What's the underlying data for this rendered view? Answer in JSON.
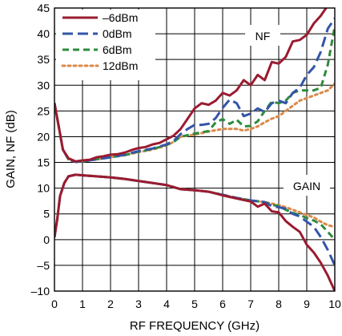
{
  "chart_data": {
    "type": "line",
    "xlabel": "RF FREQUENCY (GHz)",
    "ylabel": "GAIN, NF (dB)",
    "xlim": [
      0,
      10
    ],
    "ylim": [
      -10,
      45
    ],
    "xticks": [
      "0",
      "1",
      "2",
      "3",
      "4",
      "5",
      "6",
      "7",
      "8",
      "9",
      "10"
    ],
    "yticks": [
      "–10",
      "–5",
      "0",
      "5",
      "10",
      "15",
      "20",
      "25",
      "30",
      "35",
      "40",
      "45"
    ],
    "grid": true,
    "legend_position": "top-left",
    "annotations": [
      "NF",
      "GAIN"
    ],
    "series": [
      {
        "name": "–6dBm",
        "color": "#9b1b30",
        "dash": "solid",
        "nf": [
          [
            0,
            26.5
          ],
          [
            0.15,
            22
          ],
          [
            0.3,
            17.5
          ],
          [
            0.5,
            15.8
          ],
          [
            0.75,
            15.2
          ],
          [
            1,
            15.4
          ],
          [
            1.25,
            15.5
          ],
          [
            1.5,
            16
          ],
          [
            1.75,
            16.2
          ],
          [
            2,
            16.5
          ],
          [
            2.25,
            16.6
          ],
          [
            2.5,
            16.9
          ],
          [
            2.75,
            17.4
          ],
          [
            3,
            17.8
          ],
          [
            3.25,
            18
          ],
          [
            3.5,
            18.5
          ],
          [
            3.75,
            18.8
          ],
          [
            4,
            19.5
          ],
          [
            4.25,
            20.2
          ],
          [
            4.5,
            21.5
          ],
          [
            4.75,
            23.5
          ],
          [
            5,
            25.5
          ],
          [
            5.25,
            26.5
          ],
          [
            5.5,
            26.2
          ],
          [
            5.75,
            27
          ],
          [
            6,
            28.5
          ],
          [
            6.25,
            28
          ],
          [
            6.5,
            29
          ],
          [
            6.75,
            31
          ],
          [
            7,
            30
          ],
          [
            7.25,
            32
          ],
          [
            7.5,
            31
          ],
          [
            7.75,
            34.5
          ],
          [
            8,
            34.2
          ],
          [
            8.25,
            35.5
          ],
          [
            8.5,
            38.5
          ],
          [
            8.75,
            38.8
          ],
          [
            9,
            39.8
          ],
          [
            9.25,
            42
          ],
          [
            9.5,
            43.5
          ],
          [
            9.75,
            45.5
          ],
          [
            10,
            47.5
          ]
        ],
        "gain": [
          [
            0,
            0.5
          ],
          [
            0.1,
            4
          ],
          [
            0.2,
            8.5
          ],
          [
            0.35,
            11
          ],
          [
            0.5,
            12.3
          ],
          [
            0.75,
            12.6
          ],
          [
            1,
            12.5
          ],
          [
            1.5,
            12.3
          ],
          [
            2,
            12.1
          ],
          [
            2.5,
            11.8
          ],
          [
            3,
            11.4
          ],
          [
            3.5,
            11
          ],
          [
            4,
            10.6
          ],
          [
            4.5,
            9.8
          ],
          [
            5,
            9.6
          ],
          [
            5.5,
            9.3
          ],
          [
            6,
            8.6
          ],
          [
            6.5,
            8
          ],
          [
            7,
            7.4
          ],
          [
            7.25,
            6.4
          ],
          [
            7.5,
            7
          ],
          [
            7.75,
            5.5
          ],
          [
            8,
            5.3
          ],
          [
            8.25,
            3.6
          ],
          [
            8.5,
            2.5
          ],
          [
            8.75,
            1.5
          ],
          [
            9,
            -1
          ],
          [
            9.25,
            -2.5
          ],
          [
            9.5,
            -4.5
          ],
          [
            9.75,
            -7
          ],
          [
            10,
            -10
          ]
        ]
      },
      {
        "name": "0dBm",
        "color": "#3355a8",
        "dash": "long-dash",
        "nf": [
          [
            0,
            26.5
          ],
          [
            0.15,
            22
          ],
          [
            0.3,
            17.5
          ],
          [
            0.5,
            15.6
          ],
          [
            0.75,
            15.1
          ],
          [
            1,
            15.2
          ],
          [
            1.5,
            15.6
          ],
          [
            2,
            16
          ],
          [
            2.5,
            16.5
          ],
          [
            3,
            17.2
          ],
          [
            3.5,
            17.7
          ],
          [
            4,
            18.5
          ],
          [
            4.25,
            19.2
          ],
          [
            4.5,
            20.5
          ],
          [
            4.75,
            21.5
          ],
          [
            5,
            22.3
          ],
          [
            5.25,
            22.3
          ],
          [
            5.5,
            22.5
          ],
          [
            5.75,
            23.6
          ],
          [
            6,
            25.6
          ],
          [
            6.25,
            27.2
          ],
          [
            6.5,
            26.5
          ],
          [
            6.75,
            24
          ],
          [
            7,
            24.5
          ],
          [
            7.25,
            25.5
          ],
          [
            7.5,
            24.8
          ],
          [
            7.75,
            26.5
          ],
          [
            8,
            27
          ],
          [
            8.25,
            26.5
          ],
          [
            8.5,
            28.5
          ],
          [
            8.75,
            29.5
          ],
          [
            9,
            32
          ],
          [
            9.25,
            33.5
          ],
          [
            9.5,
            36.5
          ],
          [
            9.75,
            41
          ],
          [
            10,
            43
          ]
        ],
        "gain": [
          [
            0,
            0.5
          ],
          [
            0.1,
            4
          ],
          [
            0.2,
            8.5
          ],
          [
            0.35,
            11
          ],
          [
            0.5,
            12.3
          ],
          [
            0.75,
            12.6
          ],
          [
            1,
            12.5
          ],
          [
            1.5,
            12.3
          ],
          [
            2,
            12.1
          ],
          [
            2.5,
            11.8
          ],
          [
            3,
            11.4
          ],
          [
            3.5,
            11
          ],
          [
            4,
            10.6
          ],
          [
            4.5,
            9.8
          ],
          [
            5,
            9.6
          ],
          [
            5.5,
            9.3
          ],
          [
            6,
            8.7
          ],
          [
            6.5,
            8.1
          ],
          [
            7,
            7.6
          ],
          [
            7.5,
            7.3
          ],
          [
            7.75,
            6.5
          ],
          [
            8,
            6.3
          ],
          [
            8.25,
            6
          ],
          [
            8.5,
            5
          ],
          [
            8.75,
            4.5
          ],
          [
            9,
            3.5
          ],
          [
            9.25,
            2.5
          ],
          [
            9.5,
            0.5
          ],
          [
            9.75,
            -2
          ],
          [
            10,
            -5
          ]
        ]
      },
      {
        "name": "6dBm",
        "color": "#2e8b3e",
        "dash": "dash",
        "nf": [
          [
            0,
            26.5
          ],
          [
            0.15,
            22
          ],
          [
            0.3,
            17.5
          ],
          [
            0.5,
            15.6
          ],
          [
            0.75,
            15.1
          ],
          [
            1,
            15.2
          ],
          [
            1.5,
            15.6
          ],
          [
            2,
            16
          ],
          [
            2.5,
            16.4
          ],
          [
            3,
            17.1
          ],
          [
            3.5,
            17.6
          ],
          [
            4,
            18.4
          ],
          [
            4.25,
            19
          ],
          [
            4.5,
            20
          ],
          [
            5,
            20.6
          ],
          [
            5.5,
            21.1
          ],
          [
            5.75,
            22.8
          ],
          [
            6,
            23.4
          ],
          [
            6.25,
            22.5
          ],
          [
            6.5,
            23.3
          ],
          [
            6.75,
            22
          ],
          [
            7,
            22.1
          ],
          [
            7.25,
            23
          ],
          [
            7.5,
            25
          ],
          [
            7.75,
            26.8
          ],
          [
            8,
            26.5
          ],
          [
            8.25,
            27
          ],
          [
            8.5,
            28.5
          ],
          [
            8.75,
            29
          ],
          [
            9,
            29
          ],
          [
            9.25,
            29
          ],
          [
            9.5,
            29.5
          ],
          [
            9.75,
            34
          ],
          [
            10,
            41.5
          ]
        ],
        "gain": [
          [
            0,
            0.5
          ],
          [
            0.1,
            4
          ],
          [
            0.2,
            8.5
          ],
          [
            0.35,
            11
          ],
          [
            0.5,
            12.3
          ],
          [
            0.75,
            12.6
          ],
          [
            1,
            12.5
          ],
          [
            1.5,
            12.3
          ],
          [
            2,
            12.1
          ],
          [
            2.5,
            11.8
          ],
          [
            3,
            11.4
          ],
          [
            3.5,
            11
          ],
          [
            4,
            10.6
          ],
          [
            4.5,
            9.8
          ],
          [
            5,
            9.6
          ],
          [
            5.5,
            9.3
          ],
          [
            6,
            8.7
          ],
          [
            6.5,
            8.1
          ],
          [
            7,
            7.6
          ],
          [
            7.5,
            7.3
          ],
          [
            7.75,
            6.8
          ],
          [
            8,
            6.5
          ],
          [
            8.25,
            5.8
          ],
          [
            8.5,
            5.2
          ],
          [
            8.75,
            4.8
          ],
          [
            9,
            4.2
          ],
          [
            9.25,
            3.7
          ],
          [
            9.5,
            3
          ],
          [
            9.75,
            1.5
          ],
          [
            10,
            0
          ]
        ]
      },
      {
        "name": "12dBm",
        "color": "#d98a4a",
        "dash": "dot",
        "nf": [
          [
            0,
            26.5
          ],
          [
            0.15,
            22
          ],
          [
            0.3,
            17.5
          ],
          [
            0.5,
            15.6
          ],
          [
            0.75,
            15.1
          ],
          [
            1,
            15.2
          ],
          [
            1.5,
            15.6
          ],
          [
            2,
            16
          ],
          [
            2.5,
            16.4
          ],
          [
            3,
            17
          ],
          [
            3.5,
            17.5
          ],
          [
            4,
            18.3
          ],
          [
            4.25,
            19
          ],
          [
            4.5,
            20
          ],
          [
            5,
            20.4
          ],
          [
            5.5,
            21
          ],
          [
            6,
            21.5
          ],
          [
            6.5,
            21.5
          ],
          [
            6.75,
            21.2
          ],
          [
            7,
            21.5
          ],
          [
            7.25,
            22
          ],
          [
            7.5,
            22.8
          ],
          [
            7.75,
            23.5
          ],
          [
            8,
            24
          ],
          [
            8.25,
            25
          ],
          [
            8.5,
            26
          ],
          [
            8.75,
            27
          ],
          [
            9,
            27.5
          ],
          [
            9.25,
            28
          ],
          [
            9.5,
            28.5
          ],
          [
            9.75,
            29
          ],
          [
            10,
            30.3
          ]
        ],
        "gain": [
          [
            0,
            0.5
          ],
          [
            0.1,
            4
          ],
          [
            0.2,
            8.5
          ],
          [
            0.35,
            11
          ],
          [
            0.5,
            12.3
          ],
          [
            0.75,
            12.6
          ],
          [
            1,
            12.5
          ],
          [
            1.5,
            12.3
          ],
          [
            2,
            12.1
          ],
          [
            2.5,
            11.8
          ],
          [
            3,
            11.4
          ],
          [
            3.5,
            11
          ],
          [
            4,
            10.6
          ],
          [
            4.5,
            9.8
          ],
          [
            5,
            9.6
          ],
          [
            5.5,
            9.3
          ],
          [
            6,
            8.7
          ],
          [
            6.5,
            8.1
          ],
          [
            7,
            7.6
          ],
          [
            7.5,
            7.3
          ],
          [
            7.75,
            7
          ],
          [
            8,
            6.7
          ],
          [
            8.25,
            6.3
          ],
          [
            8.5,
            5.8
          ],
          [
            8.75,
            5.3
          ],
          [
            9,
            4.8
          ],
          [
            9.25,
            4.3
          ],
          [
            9.5,
            3.5
          ],
          [
            9.75,
            2.8
          ],
          [
            10,
            2.5
          ]
        ]
      }
    ]
  }
}
